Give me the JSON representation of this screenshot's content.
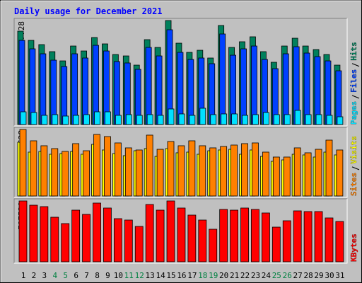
{
  "chart_data": {
    "type": "bar",
    "title": "Daily usage for December 2021",
    "categories": [
      "1",
      "2",
      "3",
      "4",
      "5",
      "6",
      "7",
      "8",
      "9",
      "10",
      "11",
      "12",
      "13",
      "14",
      "15",
      "16",
      "17",
      "18",
      "19",
      "20",
      "21",
      "22",
      "23",
      "24",
      "25",
      "26",
      "27",
      "28",
      "29",
      "30",
      "31"
    ],
    "category_colors": [
      "#000000",
      "#000000",
      "#000000",
      "#008040",
      "#008040",
      "#000000",
      "#000000",
      "#000000",
      "#000000",
      "#000000",
      "#008040",
      "#008040",
      "#000000",
      "#000000",
      "#000000",
      "#000000",
      "#000000",
      "#008040",
      "#008040",
      "#000000",
      "#000000",
      "#000000",
      "#000000",
      "#000000",
      "#008040",
      "#008040",
      "#000000",
      "#000000",
      "#000000",
      "#000000",
      "#000000"
    ],
    "panels": [
      {
        "ylim": [
          0,
          27728
        ],
        "yticks": [
          27728
        ],
        "series": [
          {
            "name": "Hits",
            "color": "#00805c",
            "values": [
              24900,
              22440,
              21310,
              19430,
              16970,
              20930,
              19610,
              23200,
              21500,
              18670,
              18290,
              15840,
              22630,
              20560,
              27728,
              21690,
              19240,
              19800,
              17730,
              26400,
              20560,
              22070,
              23390,
              19430,
              16600,
              20930,
              23010,
              20930,
              19990,
              18670,
              15840
            ]
          },
          {
            "name": "Files",
            "color": "#0040ff",
            "values": [
              22440,
              20180,
              18860,
              17160,
              15470,
              18860,
              17730,
              21120,
              19610,
              16790,
              16410,
              14710,
              20560,
              18290,
              25270,
              19240,
              17350,
              17730,
              16220,
              24140,
              18480,
              20180,
              20930,
              17350,
              14900,
              18860,
              20750,
              19050,
              18110,
              16970,
              14330
            ]
          },
          {
            "name": "Pages",
            "color": "#00e0ff",
            "values": [
              3390,
              3210,
              2450,
              2640,
              2260,
              2450,
              2640,
              3390,
              3390,
              2450,
              2640,
              2450,
              2640,
              2450,
              4150,
              2830,
              2450,
              4340,
              2640,
              2830,
              2830,
              2450,
              2640,
              3210,
              2640,
              2640,
              3770,
              2640,
              2640,
              2450,
              2070
            ]
          }
        ]
      },
      {
        "ylim": [
          0,
          1628
        ],
        "yticks": [
          1628
        ],
        "series": [
          {
            "name": "Visits",
            "color": "#ffff00",
            "values": [
              1316,
              1074,
              1091,
              1022,
              1039,
              1091,
              1022,
              1264,
              1126,
              1039,
              987,
              1108,
              1160,
              970,
              1160,
              1057,
              1074,
              1022,
              1108,
              1126,
              1143,
              1022,
              1126,
              970,
              849,
              883,
              1022,
              1005,
              953,
              1074,
              1005
            ]
          },
          {
            "name": "Sites",
            "color": "#ff8000",
            "values": [
              1628,
              1351,
              1230,
              1160,
              1091,
              1282,
              1108,
              1507,
              1455,
              1299,
              1178,
              1126,
              1490,
              1143,
              1334,
              1230,
              1351,
              1230,
              1178,
              1212,
              1247,
              1282,
              1299,
              1074,
              953,
              953,
              1178,
              1057,
              1143,
              1368,
              1126
            ]
          }
        ]
      },
      {
        "ylim": [
          0,
          797530
        ],
        "yticks": [
          797530
        ],
        "series": [
          {
            "name": "KBytes",
            "color": "#ff0000",
            "values": [
              797530,
              741840,
              723290,
              584200,
              500740,
              676930,
              621290,
              769660,
              704750,
              565650,
              547110,
              463650,
              751110,
              676930,
              797530,
              704750,
              612020,
              547110,
              426560,
              686200,
              676930,
              704750,
              686200,
              639840,
              454380,
              537830,
              667660,
              658380,
              658380,
              574930,
              528560
            ]
          }
        ]
      }
    ]
  }
}
